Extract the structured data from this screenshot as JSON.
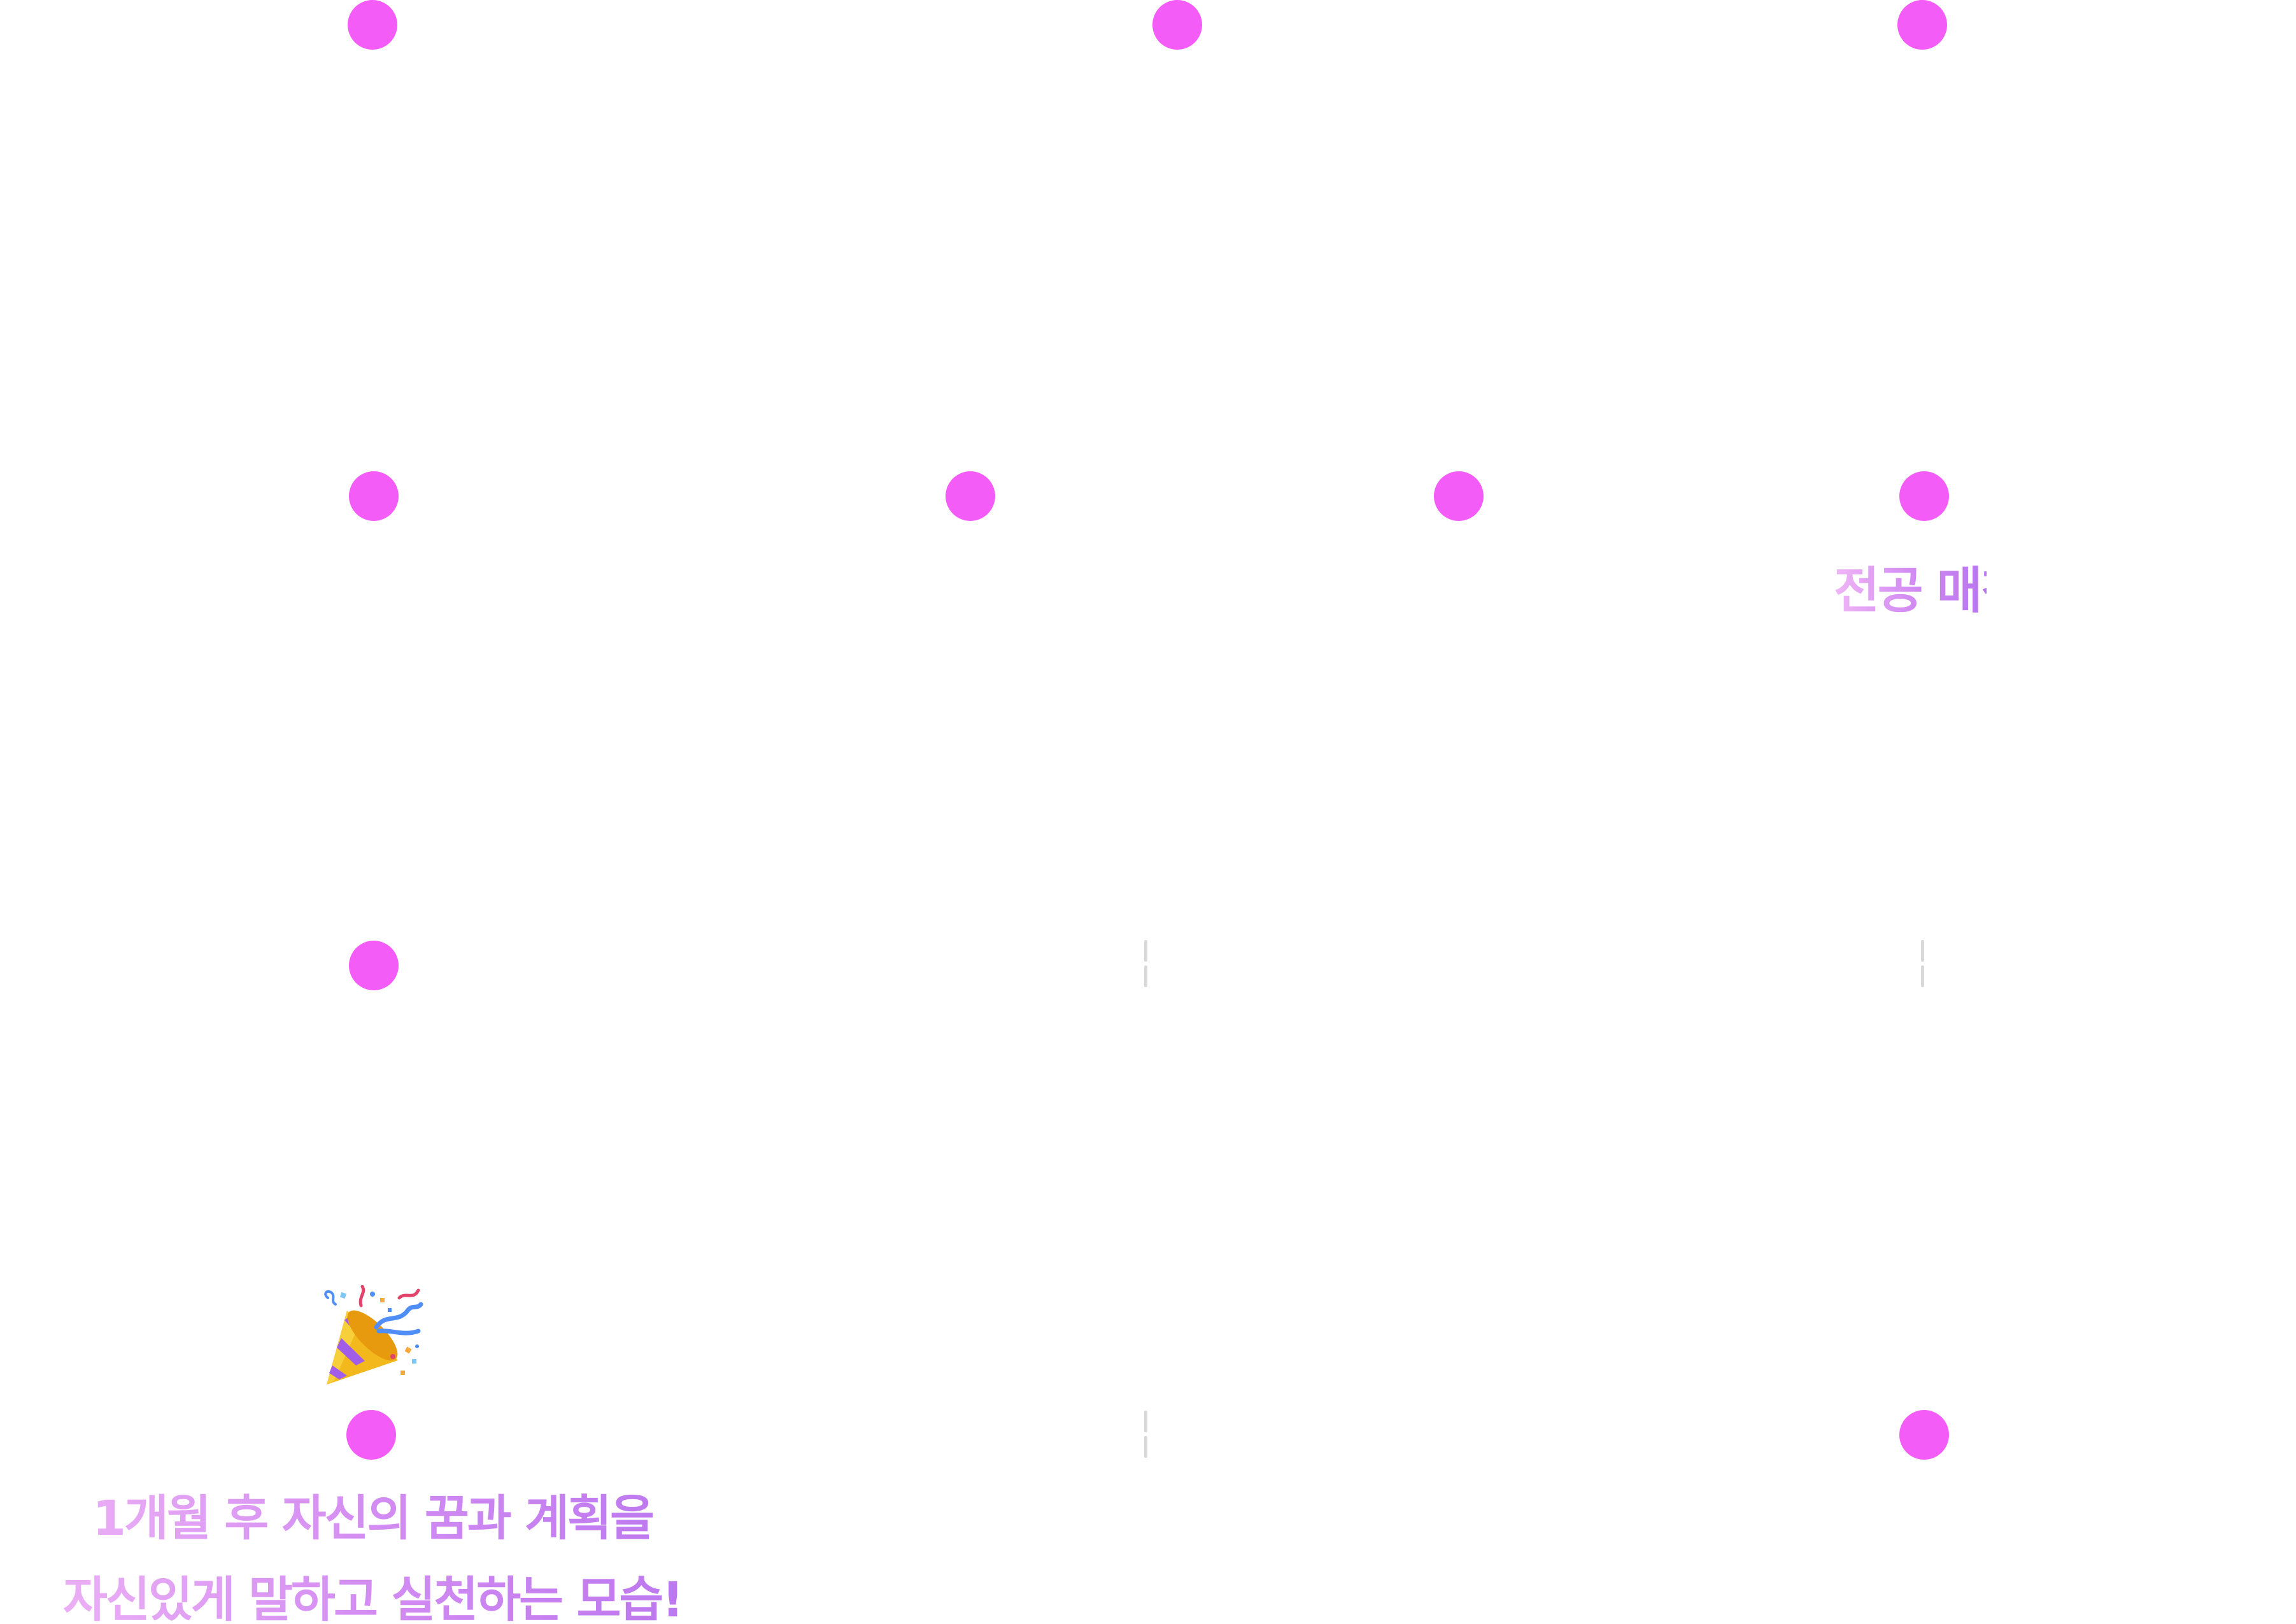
{
  "colors": {
    "node": "#f45cf7",
    "separator": "#d9d9d9",
    "text_gradient_start": "#f0b6f6",
    "text_gradient_end": "#b874ee"
  },
  "labels": {
    "major_matching": "전공 매칭"
  },
  "caption": {
    "line1": "1개월 후 자신의 꿈과 계획을",
    "line2": "자신있게 말하고 실천하는 모습!"
  },
  "icons": {
    "celebration": "party-popper-icon"
  }
}
